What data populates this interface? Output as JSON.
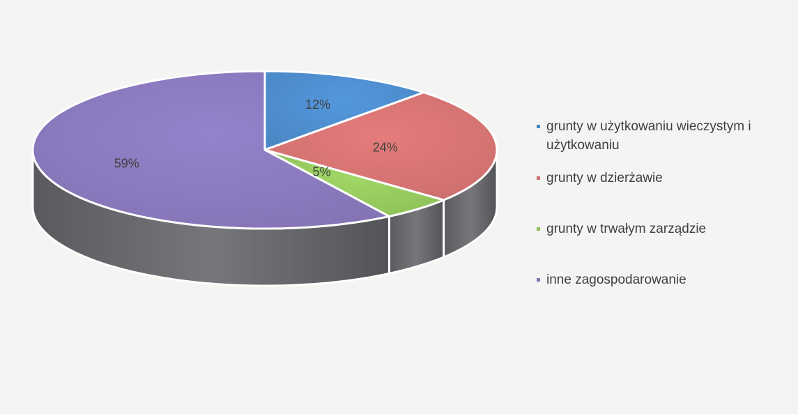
{
  "chart_data": {
    "type": "pie",
    "title": "",
    "categories": [
      "grunty w użytkowaniu wieczystym i użytkowaniu",
      "grunty w dzierżawie",
      "grunty w trwałym zarządzie",
      "inne zagospodarowanie"
    ],
    "values": [
      12,
      24,
      5,
      59
    ],
    "labels": [
      "12%",
      "24%",
      "5%",
      "59%"
    ],
    "colors": [
      "#4a87c4",
      "#cc6f6e",
      "#8fc05a",
      "#8474b5"
    ],
    "legend_position": "right",
    "style": "3d"
  }
}
